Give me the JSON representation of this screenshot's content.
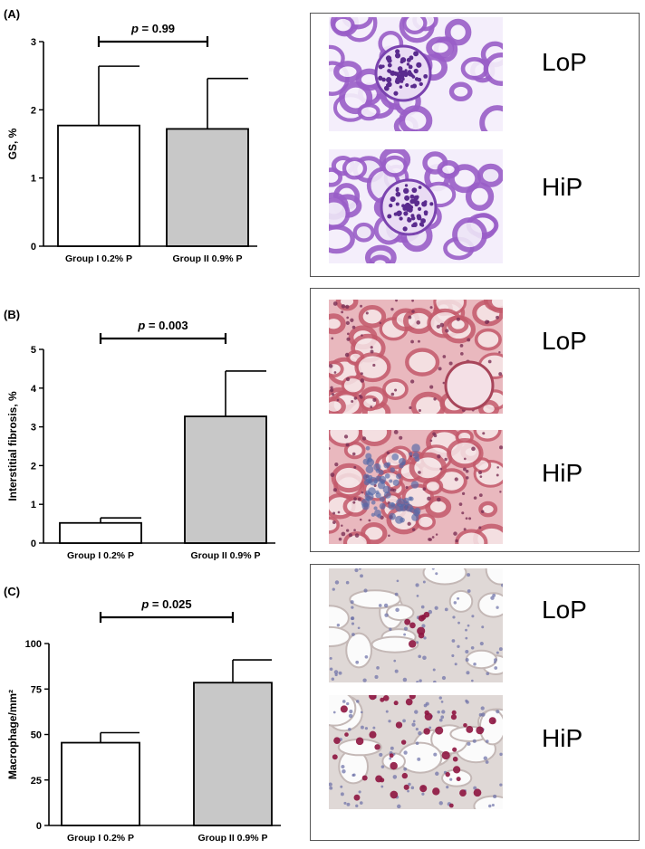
{
  "panels": [
    {
      "label": "(A)",
      "images": [
        {
          "label": "LoP",
          "stain": "pas-low"
        },
        {
          "label": "HiP",
          "stain": "pas-high"
        }
      ]
    },
    {
      "label": "(B)",
      "images": [
        {
          "label": "LoP",
          "stain": "he-low"
        },
        {
          "label": "HiP",
          "stain": "he-high"
        }
      ]
    },
    {
      "label": "(C)",
      "images": [
        {
          "label": "LoP",
          "stain": "ihc-low"
        },
        {
          "label": "HiP",
          "stain": "ihc-high"
        }
      ]
    }
  ],
  "chart_data": [
    {
      "type": "bar",
      "categories": [
        "Group I 0.2% P",
        "Group II 0.9% P"
      ],
      "values": [
        1.77,
        1.72
      ],
      "errors": [
        0.87,
        0.74
      ],
      "ylabel": "GS, %",
      "ylim": [
        0,
        3
      ],
      "yticks": [
        "0",
        "1",
        "2",
        "3"
      ],
      "annotation": {
        "p": "p",
        "text": " = 0.99"
      },
      "bar_colors": [
        "#ffffff",
        "#c8c8c8"
      ]
    },
    {
      "type": "bar",
      "categories": [
        "Group I 0.2% P",
        "Group II 0.9% P"
      ],
      "values": [
        0.52,
        3.27
      ],
      "errors": [
        0.13,
        1.17
      ],
      "ylabel": "Interstitial fibrosis, %",
      "ylim": [
        0,
        5
      ],
      "yticks": [
        "0",
        "1",
        "2",
        "3",
        "4",
        "5"
      ],
      "annotation": {
        "p": "p",
        "text": " = 0.003"
      },
      "bar_colors": [
        "#ffffff",
        "#c8c8c8"
      ]
    },
    {
      "type": "bar",
      "categories": [
        "Group I 0.2% P",
        "Group II 0.9% P"
      ],
      "values": [
        45.5,
        78.5
      ],
      "errors": [
        5.5,
        12.5
      ],
      "ylabel": "Macrophage/mm²",
      "ylim": [
        0,
        100
      ],
      "yticks": [
        "0",
        "25",
        "50",
        "75",
        "100"
      ],
      "annotation": {
        "p": "p",
        "text": " = 0.025"
      },
      "bar_colors": [
        "#ffffff",
        "#c8c8c8"
      ]
    }
  ]
}
